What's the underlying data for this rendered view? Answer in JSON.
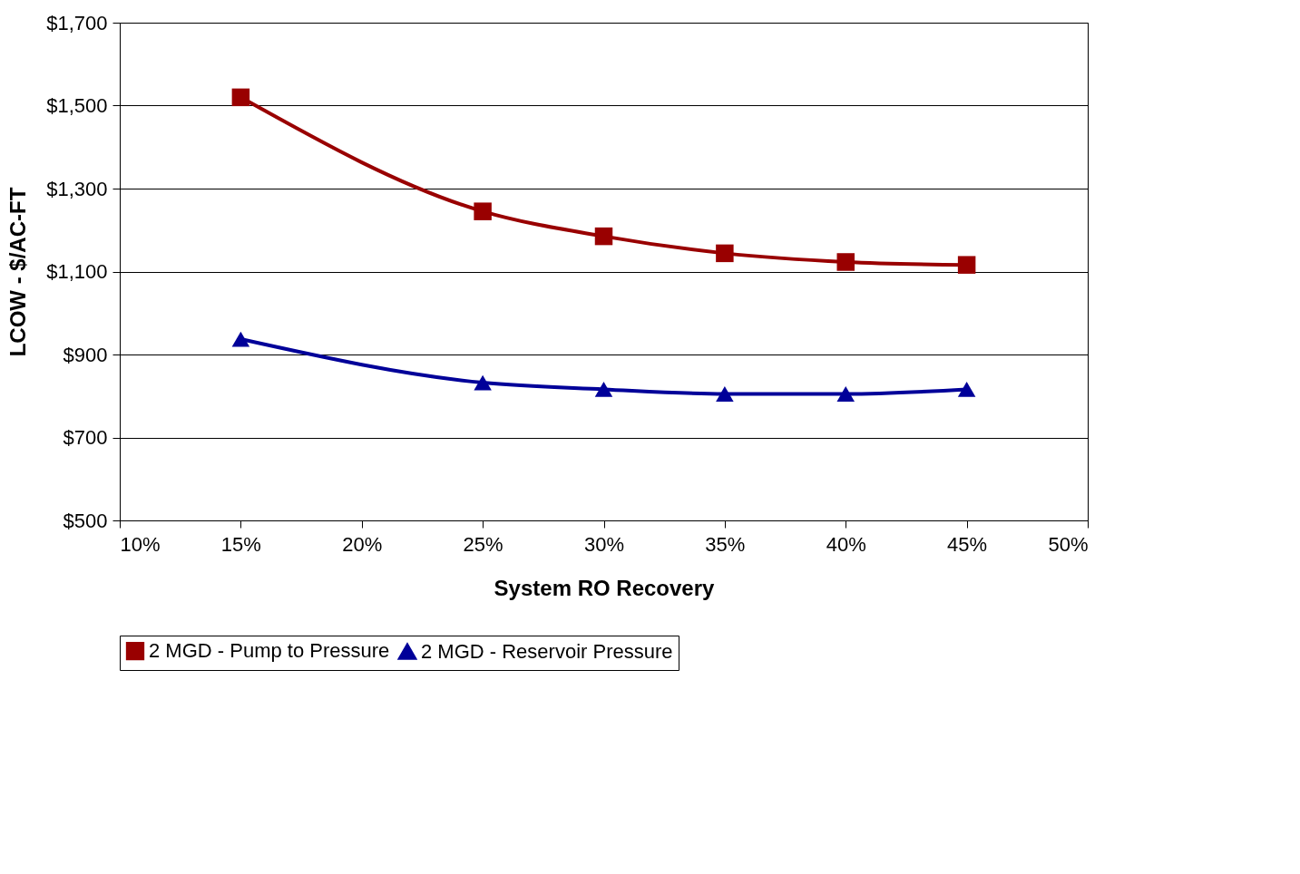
{
  "chart_data": {
    "type": "line",
    "xlabel": "System RO Recovery",
    "ylabel": "LCOW - $/AC-FT",
    "x": [
      15,
      25,
      30,
      35,
      40,
      45
    ],
    "series": [
      {
        "name": "2 MGD - Pump to Pressure",
        "color": "#990000",
        "marker": "square",
        "values": [
          1520,
          1245,
          1185,
          1144,
          1123,
          1116
        ]
      },
      {
        "name": "2 MGD - Reservoir Pressure",
        "color": "#000099",
        "marker": "triangle",
        "values": [
          937,
          832,
          816,
          805,
          805,
          816
        ]
      }
    ],
    "xlim": [
      10,
      50
    ],
    "xticks": [
      {
        "value": 10,
        "label": "10%"
      },
      {
        "value": 15,
        "label": "15%"
      },
      {
        "value": 20,
        "label": "20%"
      },
      {
        "value": 25,
        "label": "25%"
      },
      {
        "value": 30,
        "label": "30%"
      },
      {
        "value": 35,
        "label": "35%"
      },
      {
        "value": 40,
        "label": "40%"
      },
      {
        "value": 45,
        "label": "45%"
      },
      {
        "value": 50,
        "label": "50%"
      }
    ],
    "ylim": [
      500,
      1700
    ],
    "yticks": [
      {
        "value": 500,
        "label": "$500"
      },
      {
        "value": 700,
        "label": "$700"
      },
      {
        "value": 900,
        "label": "$900"
      },
      {
        "value": 1100,
        "label": "$1,100"
      },
      {
        "value": 1300,
        "label": "$1,300"
      },
      {
        "value": 1500,
        "label": "$1,500"
      },
      {
        "value": 1700,
        "label": "$1,700"
      }
    ],
    "grid": "y",
    "legend": "bottom",
    "line_style": "solid"
  }
}
